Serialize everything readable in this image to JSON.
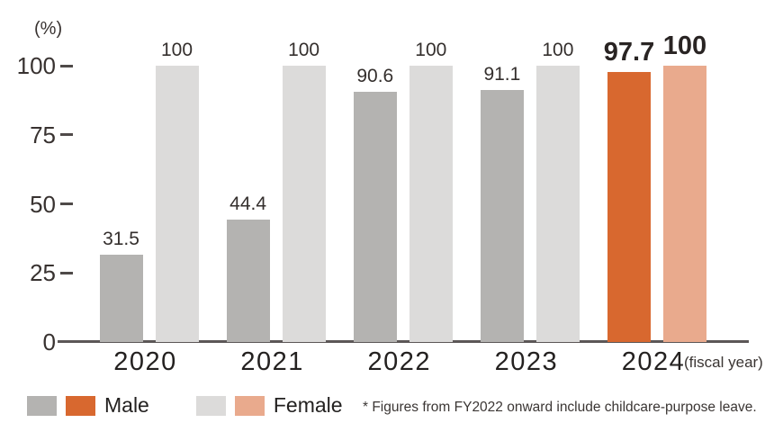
{
  "chart_data": {
    "type": "bar",
    "ylabel": "(%)",
    "categories": [
      "2020",
      "2021",
      "2022",
      "2023",
      "2024"
    ],
    "series": [
      {
        "name": "Male",
        "values": [
          31.5,
          44.4,
          90.6,
          91.1,
          97.7
        ],
        "color": "#b4b3b1",
        "highlight_color": "#d8682f"
      },
      {
        "name": "Female",
        "values": [
          100,
          100,
          100,
          100,
          100
        ],
        "color": "#dcdbda",
        "highlight_color": "#e9aa8d"
      }
    ],
    "highlight_category": "2024",
    "y_ticks": [
      0,
      25,
      50,
      75,
      100
    ],
    "ylim": [
      0,
      100
    ],
    "grid": false,
    "legend_position": "bottom-left",
    "xlabel_suffix": "(fiscal year)",
    "footnote": "* Figures from FY2022 onward include childcare-purpose leave."
  },
  "colors": {
    "text": "#342f2d",
    "axis_line": "#5c5757"
  }
}
